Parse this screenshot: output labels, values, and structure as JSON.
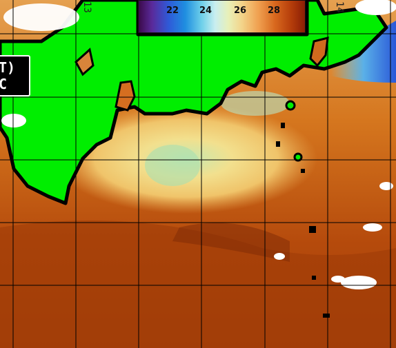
{
  "legend": {
    "ticks": [
      "22",
      "24",
      "26",
      "28"
    ],
    "unit": ""
  },
  "label_box": {
    "line1": "T)",
    "line2": "C"
  },
  "coord_labels": [
    "13",
    "14"
  ],
  "colors": {
    "land": "#00ee00",
    "coastline": "#000000",
    "cloud": "#ffffff",
    "warm_water": "#c0500e",
    "cool_water": "#f0d080",
    "grid": "#000000"
  }
}
